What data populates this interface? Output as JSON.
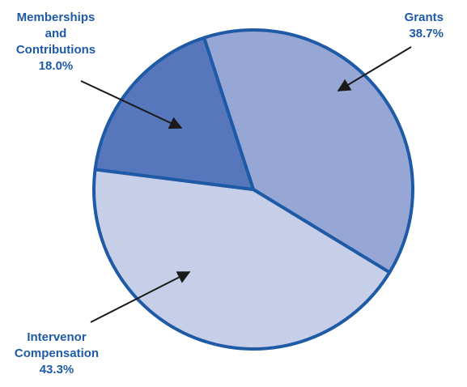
{
  "colors": {
    "outline": "#1F5AA6",
    "label_text": "#1F5AA6",
    "arrow": "#1A1A1A"
  },
  "chart_data": {
    "type": "pie",
    "title": "",
    "slices": [
      {
        "id": "grants",
        "label": "Grants",
        "value": 38.7,
        "display_value": "38.7%",
        "label_lines": [
          "Grants",
          "38.7%"
        ],
        "color": "#96A7D6"
      },
      {
        "id": "intervenor-compensation",
        "label": "Intervenor Compensation",
        "value": 43.3,
        "display_value": "43.3%",
        "label_lines": [
          "Intervenor",
          "Compensation",
          "43.3%"
        ],
        "color": "#C6CEE8"
      },
      {
        "id": "memberships-and-contributions",
        "label": "Memberships and Contributions",
        "value": 18.0,
        "display_value": "18.0%",
        "label_lines": [
          "Memberships",
          "and",
          "Contributions",
          "18.0%"
        ],
        "color": "#5777BC"
      }
    ]
  }
}
